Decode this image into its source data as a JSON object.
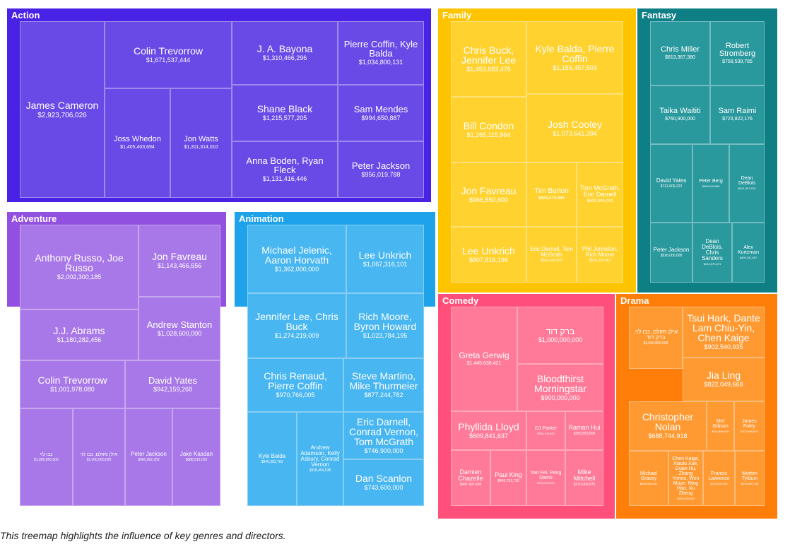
{
  "caption": "This treemap highlights the influence of key genres and directors.",
  "chart_data": {
    "type": "treemap",
    "groups": [
      {
        "name": "Action",
        "color": "#4a22e6",
        "cell_color": "#6a4ae6",
        "items": [
          {
            "label": "James Cameron",
            "value": "$2,923,706,026"
          },
          {
            "label": "Colin Trevorrow",
            "value": "$1,671,537,444"
          },
          {
            "label": "Joss Whedon",
            "value": "$1,405,403,694"
          },
          {
            "label": "Jon Watts",
            "value": "$1,311,314,010"
          },
          {
            "label": "J. A. Bayona",
            "value": "$1,310,466,296"
          },
          {
            "label": "Shane Black",
            "value": "$1,215,577,205"
          },
          {
            "label": "Anna Boden, Ryan Fleck",
            "value": "$1,131,416,446"
          },
          {
            "label": "Pierre Coffin, Kyle Balda",
            "value": "$1,034,800,131"
          },
          {
            "label": "Sam Mendes",
            "value": "$994,650,887"
          },
          {
            "label": "Peter Jackson",
            "value": "$956,019,788"
          }
        ]
      },
      {
        "name": "Adventure",
        "color": "#9250e0",
        "cell_color": "#a878e8",
        "items": [
          {
            "label": "Anthony Russo, Joe Russo",
            "value": "$2,002,300,185"
          },
          {
            "label": "Jon Favreau",
            "value": "$1,143,466,656"
          },
          {
            "label": "J.J. Abrams",
            "value": "$1,180,282,456"
          },
          {
            "label": "Andrew Stanton",
            "value": "$1,028,600,000"
          },
          {
            "label": "Colin Trevorrow",
            "value": "$1,001,978,080"
          },
          {
            "label": "David Yates",
            "value": "$942,159,268"
          },
          {
            "label": "נבו לוי",
            "value": "$1,000,000,000"
          },
          {
            "label": "אילן מזולם, נבו לוי",
            "value": "$1,000,000,000"
          },
          {
            "label": "Peter Jackson",
            "value": "$900,002,252"
          },
          {
            "label": "Jake Kasdan",
            "value": "$888,516,523"
          }
        ]
      },
      {
        "name": "Animation",
        "color": "#1ea2ea",
        "cell_color": "#48b6f0",
        "items": [
          {
            "label": "Michael Jelenic, Aaron Horvath",
            "value": "$1,362,000,000"
          },
          {
            "label": "Lee Unkrich",
            "value": "$1,067,316,101"
          },
          {
            "label": "Jennifer Lee, Chris Buck",
            "value": "$1,274,219,009"
          },
          {
            "label": "Rich Moore, Byron Howard",
            "value": "$1,023,784,195"
          },
          {
            "label": "Chris Renaud, Pierre Coffin",
            "value": "$970,766,005"
          },
          {
            "label": "Steve Martino, Mike Thurmeier",
            "value": "$877,244,782"
          },
          {
            "label": "Kyle Balda",
            "value": "$940,303,763"
          },
          {
            "label": "Andrew Adamson, Kelly Asbury, Conrad Vernon",
            "value": "$928,454,538"
          },
          {
            "label": "Eric Darnell, Conrad Vernon, Tom McGrath",
            "value": "$746,900,000"
          },
          {
            "label": "Dan Scanlon",
            "value": "$743,600,000"
          }
        ]
      },
      {
        "name": "Family",
        "color": "#ffc400",
        "cell_color": "#ffd230",
        "items": [
          {
            "label": "Chris Buck, Jennifer Lee",
            "value": "$1,453,683,476"
          },
          {
            "label": "Kyle Balda, Pierre Coffin",
            "value": "$1,159,457,503"
          },
          {
            "label": "Bill Condon",
            "value": "$1,265,115,964"
          },
          {
            "label": "Josh Cooley",
            "value": "$1,073,641,394"
          },
          {
            "label": "Jon Favreau",
            "value": "$966,550,600"
          },
          {
            "label": "Tim Burton",
            "value": "$689,875,666"
          },
          {
            "label": "Tom McGrath, Eric Darnell",
            "value": "$603,900,000"
          },
          {
            "label": "Lee Unkrich",
            "value": "$807,816,196"
          },
          {
            "label": "Eric Darnell, Tom McGrath",
            "value": "$543,100,000"
          },
          {
            "label": "Phil Johnston, Rich Moore",
            "value": "$529,323,962"
          }
        ]
      },
      {
        "name": "Fantasy",
        "color": "#0f7f86",
        "cell_color": "#2a999e",
        "items": [
          {
            "label": "Chris Miller",
            "value": "$813,367,380"
          },
          {
            "label": "Robert Stromberg",
            "value": "$758,539,785"
          },
          {
            "label": "Taika Waititi",
            "value": "$760,900,000"
          },
          {
            "label": "Sam Raimi",
            "value": "$723,822,176"
          },
          {
            "label": "David Yates",
            "value": "$712,609,222"
          },
          {
            "label": "Peter Berg",
            "value": "$609,016,565"
          },
          {
            "label": "Dean DeBlois",
            "value": "$621,537,519"
          },
          {
            "label": "Peter Jackson",
            "value": "$526,000,000"
          },
          {
            "label": "Dean DeBlois, Chris Sanders",
            "value": "$494,879,471"
          },
          {
            "label": "Alex Kurtzman",
            "value": "$409,231,607"
          }
        ]
      },
      {
        "name": "Comedy",
        "color": "#ff4f7a",
        "cell_color": "#ff7a98",
        "items": [
          {
            "label": "Greta Gerwig",
            "value": "$1,445,638,421"
          },
          {
            "label": "ברק דוד",
            "value": "$1,000,000,000"
          },
          {
            "label": "Bloodthirst Morningstar",
            "value": "$900,000,000"
          },
          {
            "label": "Phyllida Lloyd",
            "value": "$609,841,637"
          },
          {
            "label": "DJ Parker",
            "value": "$555,100,000"
          },
          {
            "label": "Raman Hui",
            "value": "$380,853,606"
          },
          {
            "label": "Damien Chazelle",
            "value": "$447,407,695"
          },
          {
            "label": "Paul King",
            "value": "$443,751,735"
          },
          {
            "label": "Yan Fei, Peng Damo",
            "value": "$370,000,000"
          },
          {
            "label": "Mike Mitchell",
            "value": "$370,000,875"
          }
        ]
      },
      {
        "name": "Drama",
        "color": "#ff7e0a",
        "cell_color": "#ff9a32",
        "items": [
          {
            "label": "אילן מזולם, נבו לוי, ברק דוד",
            "value": "$1,000,000,000"
          },
          {
            "label": "Tsui Hark, Dante Lam Chiu-Yin, Chen Kaige",
            "value": "$902,540,935"
          },
          {
            "label": "Jia Ling",
            "value": "$822,049,668"
          },
          {
            "label": "Christopher Nolan",
            "value": "$688,744,918"
          },
          {
            "label": "Mel Gibson",
            "value": "$611,899,420"
          },
          {
            "label": "James Foley",
            "value": "$371,985,018"
          },
          {
            "label": "Michael Gracey",
            "value": "$435,026,000"
          },
          {
            "label": "Chen Kaige, Xiaolu Xue, Guan Hu, Zhang Yimou, Wen Muye, Ning Hao, Xu Zheng",
            "value": "$409,000,000"
          },
          {
            "label": "Francis Lawrence",
            "value": "$344,000,000"
          },
          {
            "label": "Morten Tyldum",
            "value": "$233,555,708"
          }
        ]
      }
    ]
  }
}
